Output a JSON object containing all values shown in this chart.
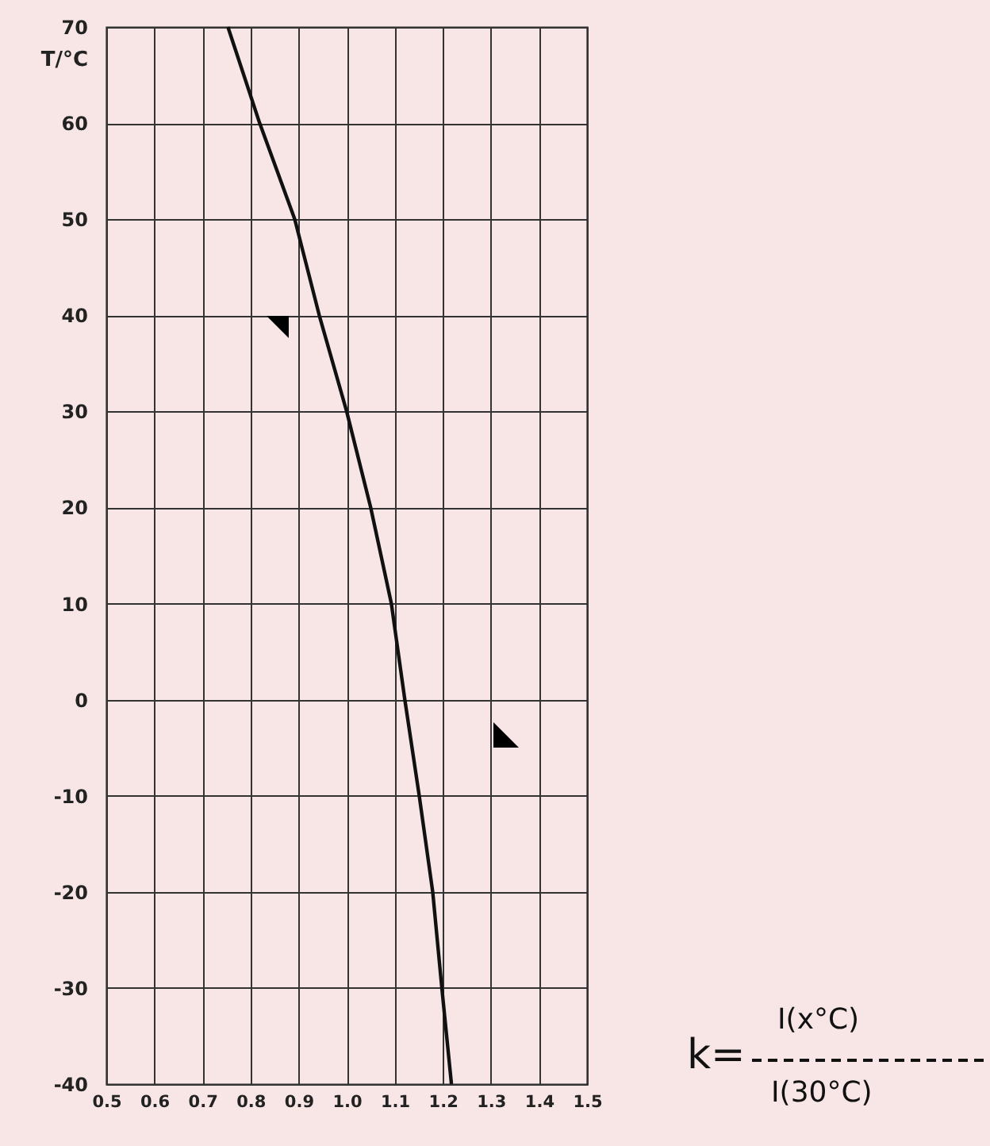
{
  "chart_data": {
    "type": "line",
    "ylabel": "T/°C",
    "x": [
      0.753,
      0.819,
      0.892,
      0.943,
      1.0,
      1.05,
      1.093,
      1.121,
      1.151,
      1.179,
      1.198,
      1.218
    ],
    "values": [
      70,
      60,
      50,
      40,
      30,
      20,
      10,
      0,
      -10,
      -20,
      -30,
      -40
    ],
    "color": "#111111",
    "line_style": "solid",
    "marker": "none",
    "xlim": [
      0.5,
      1.5
    ],
    "xticks": [
      0.5,
      0.6,
      0.7,
      0.8,
      0.9,
      {
        "value": 1.0,
        "label": "1.0"
      },
      1.1,
      1.2,
      1.3,
      1.4,
      1.5
    ],
    "ylim": [
      -40,
      70
    ],
    "yticks": [
      -40,
      -30,
      -20,
      -10,
      0,
      10,
      20,
      30,
      40,
      50,
      60,
      70
    ],
    "grid": true,
    "annotations": [
      "k=",
      "I(x°C)",
      "I(30°C)"
    ]
  }
}
